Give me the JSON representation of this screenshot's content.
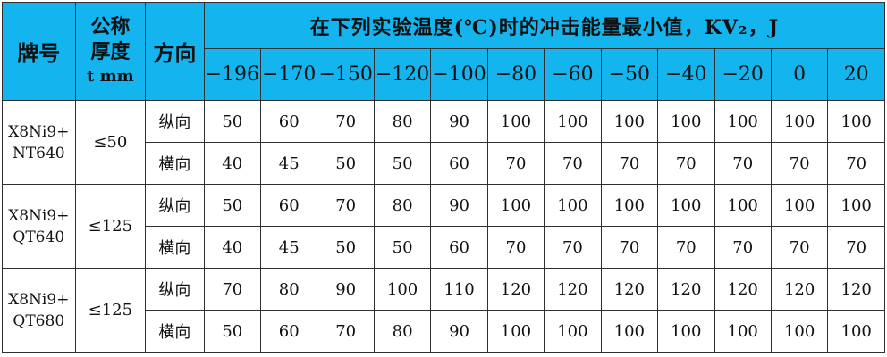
{
  "header": {
    "grade": "牌号",
    "thickness": [
      "公称",
      "厚度",
      "t mm"
    ],
    "direction": "方向",
    "title": "在下列实验温度(℃)时的冲击能量最小值，KV₂，J",
    "temperatures": [
      "−196",
      "−170",
      "−150",
      "−120",
      "−100",
      "−80",
      "−60",
      "−50",
      "−40",
      "−20",
      "0",
      "20"
    ]
  },
  "groups": [
    {
      "grade": [
        "X8Ni9+",
        "NT640"
      ],
      "thickness": "≤50",
      "rows": [
        {
          "direction": "纵向",
          "values": [
            "50",
            "60",
            "70",
            "80",
            "90",
            "100",
            "100",
            "100",
            "100",
            "100",
            "100",
            "100"
          ]
        },
        {
          "direction": "横向",
          "values": [
            "40",
            "45",
            "50",
            "50",
            "60",
            "70",
            "70",
            "70",
            "70",
            "70",
            "70",
            "70"
          ]
        }
      ]
    },
    {
      "grade": [
        "X8Ni9+",
        "QT640"
      ],
      "thickness": "≤125",
      "rows": [
        {
          "direction": "纵向",
          "values": [
            "50",
            "60",
            "70",
            "80",
            "90",
            "100",
            "100",
            "100",
            "100",
            "100",
            "100",
            "100"
          ]
        },
        {
          "direction": "横向",
          "values": [
            "40",
            "45",
            "50",
            "50",
            "60",
            "70",
            "70",
            "70",
            "70",
            "70",
            "70",
            "70"
          ]
        }
      ]
    },
    {
      "grade": [
        "X8Ni9+",
        "QT680"
      ],
      "thickness": "≤125",
      "rows": [
        {
          "direction": "纵向",
          "values": [
            "70",
            "80",
            "90",
            "100",
            "110",
            "120",
            "120",
            "120",
            "120",
            "120",
            "120",
            "120"
          ]
        },
        {
          "direction": "横向",
          "values": [
            "50",
            "60",
            "70",
            "80",
            "90",
            "100",
            "100",
            "100",
            "100",
            "100",
            "100",
            "100"
          ]
        }
      ]
    }
  ]
}
